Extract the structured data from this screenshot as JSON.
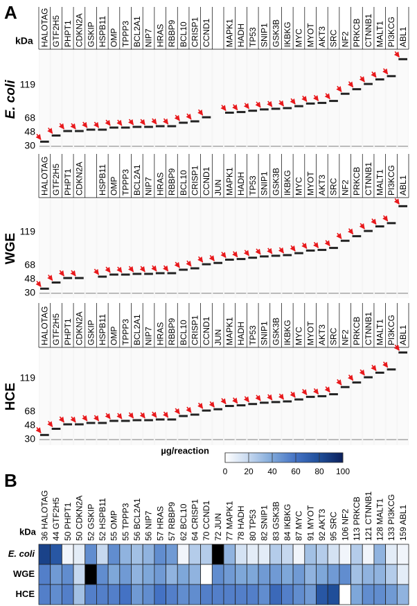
{
  "panel_a": {
    "label": "A",
    "unit": "kDa",
    "marker_ticks": [
      119,
      68,
      48,
      30
    ],
    "gels": [
      {
        "name": "E. coli",
        "lanes": [
          "HALOTAG",
          "GTF2H5",
          "PHPT1",
          "CDKN2A",
          "GSKIP",
          "HSPB11",
          "OMP",
          "TPPP3",
          "BCL2A1",
          "NIP7",
          "HRAS",
          "RBBP9",
          "BCL10",
          "CRISP1",
          "CCND1",
          null,
          "MAPK1",
          "HADH",
          "TP53",
          "SNIP1",
          "GSK3B",
          "IKBKG",
          "MYC",
          "MYOT",
          "AKT3",
          "SRC",
          "NF2",
          "PRKCB",
          "CTNNB1",
          "MALT1",
          "PI3KCG",
          "ABL1"
        ]
      },
      {
        "name": "WGE",
        "lanes": [
          "HALOTAG",
          "GTF2H5",
          "PHPT1",
          "CDKN2A",
          null,
          "HSPB11",
          "OMP",
          "TPPP3",
          "BCL2A1",
          "NIP7",
          "HRAS",
          "RBBP9",
          "BCL10",
          "CRISP1",
          "CCND1",
          "JUN",
          "MAPK1",
          "HADH",
          "TP53",
          "SNIP1",
          "GSK3B",
          "IKBKG",
          "MYC",
          "MYOT",
          "AKT3",
          "SRC",
          "NF2",
          "PRKCB",
          "CTNNB1",
          "MALT1",
          "PI3KCG",
          "ABL1"
        ]
      },
      {
        "name": "HCE",
        "lanes": [
          "HALOTAG",
          "GTF2H5",
          "PHPT1",
          "CDKN2A",
          "GSKIP",
          "HSPB11",
          "OMP",
          "TPPP3",
          "BCL2A1",
          "NIP7",
          "HRAS",
          "RBBP9",
          "BCL10",
          "CRISP1",
          "CCND1",
          "JUN",
          "MAPK1",
          "HADH",
          "TP53",
          "SNIP1",
          "GSK3B",
          "IKBKG",
          "MYC",
          "MYOT",
          "AKT3",
          "SRC",
          "NF2",
          "PRKCB",
          "CTNNB1",
          "MALT1",
          "PI3KCG",
          "ABL1"
        ]
      }
    ]
  },
  "chart_data": {
    "type": "heatmap",
    "label": "B",
    "xlabel": "kDa",
    "x": [
      "36 HALOTAG",
      "44 GTF2H5",
      "50 PHPT1",
      "50 CDKN2A",
      "52 GSKIP",
      "52 HSPB11",
      "55 OMP",
      "55 TPPP3",
      "56 BCL2A1",
      "56 NIP7",
      "57 HRAS",
      "57 RBBP9",
      "62 BCL10",
      "64 CRISP1",
      "70 CCND1",
      "72 JUN",
      "77 MAPK1",
      "78 HADH",
      "80 TP53",
      "82 SNIP1",
      "83 GSK3B",
      "84 IKBKG",
      "87 MYC",
      "91 MYOT",
      "92 AKT3",
      "95 SRC",
      "106 NF2",
      "113 PRKCB",
      "121 CTNNB1",
      "128 MALT1",
      "133 PI3KCG",
      "159 ABL1"
    ],
    "y": [
      "E. coli",
      "WGE",
      "HCE"
    ],
    "values": [
      [
        85,
        75,
        5,
        10,
        50,
        20,
        50,
        35,
        30,
        35,
        50,
        45,
        5,
        25,
        25,
        110,
        35,
        15,
        10,
        10,
        25,
        20,
        5,
        30,
        25,
        15,
        5,
        25,
        5,
        35,
        10,
        5
      ],
      [
        55,
        45,
        50,
        20,
        110,
        50,
        40,
        45,
        35,
        40,
        45,
        35,
        40,
        35,
        0,
        50,
        45,
        40,
        40,
        45,
        45,
        40,
        45,
        35,
        40,
        45,
        50,
        30,
        35,
        35,
        25,
        10
      ],
      [
        55,
        50,
        55,
        30,
        55,
        55,
        55,
        60,
        45,
        50,
        60,
        55,
        50,
        50,
        55,
        55,
        55,
        55,
        55,
        50,
        65,
        55,
        50,
        45,
        75,
        80,
        0,
        40,
        50,
        50,
        45,
        35
      ]
    ],
    "colorbar_label": "µg/reaction",
    "clim": [
      0,
      100
    ],
    "cticks": [
      0,
      20,
      40,
      60,
      80,
      100
    ],
    "colors": [
      "#ffffff",
      "#c6d8ef",
      "#7ea7d9",
      "#4472c4",
      "#1f4e99",
      "#0b1f5a"
    ],
    "over_color": "#000000"
  }
}
